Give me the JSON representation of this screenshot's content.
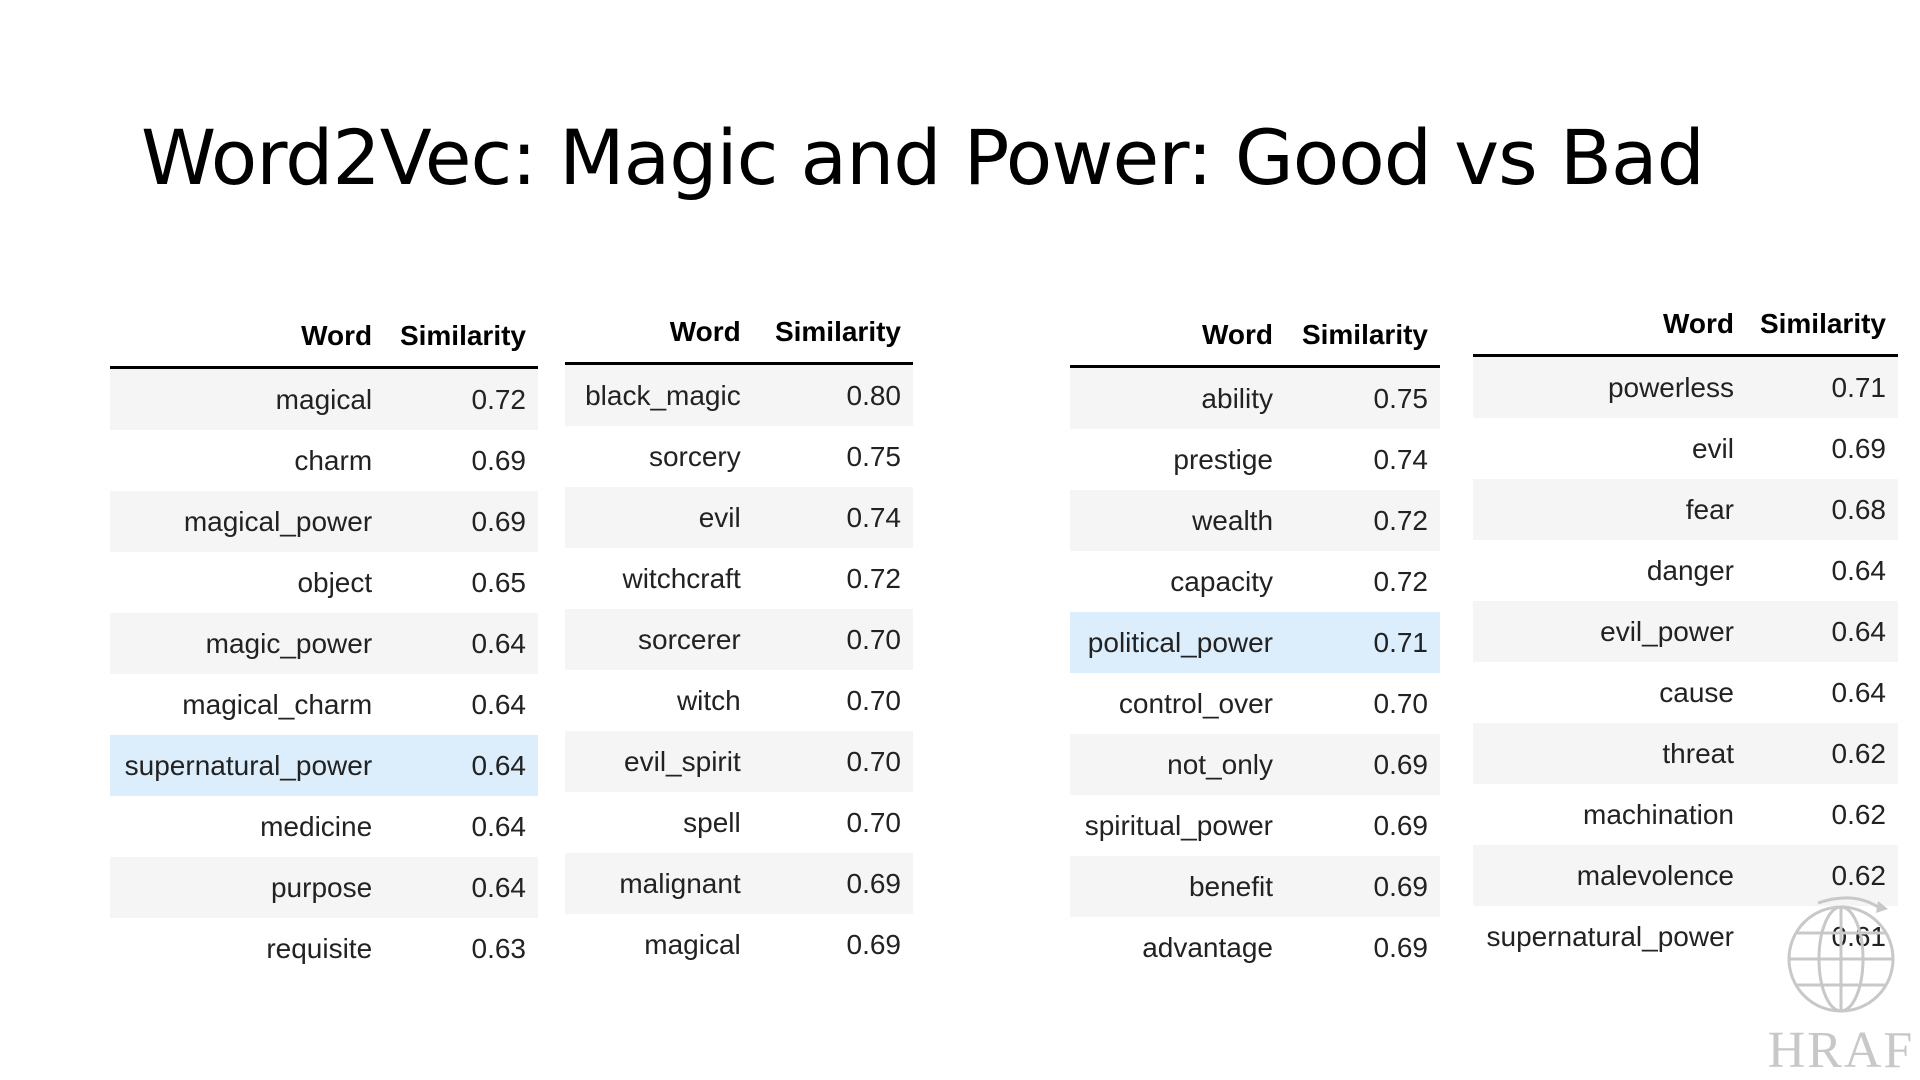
{
  "title": "Word2Vec: Magic and Power: Good vs Bad",
  "column_headers": {
    "word": "Word",
    "similarity": "Similarity"
  },
  "tables": [
    {
      "rows": [
        {
          "word": "magical",
          "sim": "0.72"
        },
        {
          "word": "charm",
          "sim": "0.69"
        },
        {
          "word": "magical_power",
          "sim": "0.69"
        },
        {
          "word": "object",
          "sim": "0.65"
        },
        {
          "word": "magic_power",
          "sim": "0.64"
        },
        {
          "word": "magical_charm",
          "sim": "0.64"
        },
        {
          "word": "supernatural_power",
          "sim": "0.64"
        },
        {
          "word": "medicine",
          "sim": "0.64"
        },
        {
          "word": "purpose",
          "sim": "0.64"
        },
        {
          "word": "requisite",
          "sim": "0.63"
        }
      ]
    },
    {
      "rows": [
        {
          "word": "black_magic",
          "sim": "0.80"
        },
        {
          "word": "sorcery",
          "sim": "0.75"
        },
        {
          "word": "evil",
          "sim": "0.74"
        },
        {
          "word": "witchcraft",
          "sim": "0.72"
        },
        {
          "word": "sorcerer",
          "sim": "0.70"
        },
        {
          "word": "witch",
          "sim": "0.70"
        },
        {
          "word": "evil_spirit",
          "sim": "0.70"
        },
        {
          "word": "spell",
          "sim": "0.70"
        },
        {
          "word": "malignant",
          "sim": "0.69"
        },
        {
          "word": "magical",
          "sim": "0.69"
        }
      ]
    },
    {
      "rows": [
        {
          "word": "ability",
          "sim": "0.75"
        },
        {
          "word": "prestige",
          "sim": "0.74"
        },
        {
          "word": "wealth",
          "sim": "0.72"
        },
        {
          "word": "capacity",
          "sim": "0.72"
        },
        {
          "word": "political_power",
          "sim": "0.71"
        },
        {
          "word": "control_over",
          "sim": "0.70"
        },
        {
          "word": "not_only",
          "sim": "0.69"
        },
        {
          "word": "spiritual_power",
          "sim": "0.69"
        },
        {
          "word": "benefit",
          "sim": "0.69"
        },
        {
          "word": "advantage",
          "sim": "0.69"
        }
      ]
    },
    {
      "rows": [
        {
          "word": "powerless",
          "sim": "0.71"
        },
        {
          "word": "evil",
          "sim": "0.69"
        },
        {
          "word": "fear",
          "sim": "0.68"
        },
        {
          "word": "danger",
          "sim": "0.64"
        },
        {
          "word": "evil_power",
          "sim": "0.64"
        },
        {
          "word": "cause",
          "sim": "0.64"
        },
        {
          "word": "threat",
          "sim": "0.62"
        },
        {
          "word": "machination",
          "sim": "0.62"
        },
        {
          "word": "malevolence",
          "sim": "0.62"
        },
        {
          "word": "supernatural_power",
          "sim": "0.61"
        }
      ]
    }
  ],
  "logo": {
    "text": "HRAF",
    "icon": "globe-icon"
  },
  "colors": {
    "highlight_row": "#dceefb",
    "striped_row": "#f5f5f5",
    "logo_gray": "#c8c8c8"
  }
}
